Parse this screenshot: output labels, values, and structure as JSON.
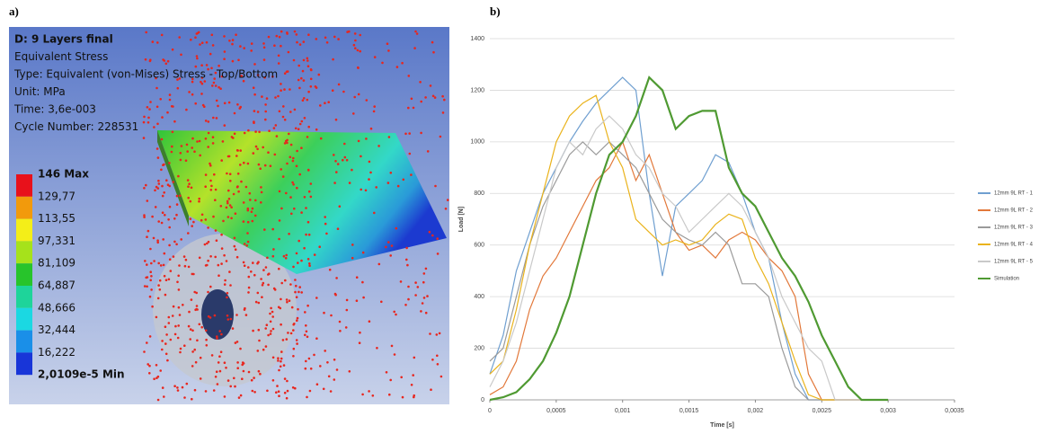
{
  "panel_a": {
    "label": "a)",
    "info": [
      "D: 9 Layers final",
      "Equivalent Stress",
      "Type: Equivalent (von-Mises) Stress - Top/Bottom",
      "Unit: MPa",
      "Time: 3,6e-003",
      "Cycle Number: 228531"
    ],
    "legend": [
      {
        "label": "146 Max",
        "color": "#e8111b"
      },
      {
        "label": "129,77",
        "color": "#f29a0c"
      },
      {
        "label": "113,55",
        "color": "#f4ee18"
      },
      {
        "label": "97,331",
        "color": "#a6e21b"
      },
      {
        "label": "81,109",
        "color": "#27c42b"
      },
      {
        "label": "64,887",
        "color": "#1ed49a"
      },
      {
        "label": "48,666",
        "color": "#1bd8e2"
      },
      {
        "label": "32,444",
        "color": "#1a8fe8"
      },
      {
        "label": "16,222",
        "color": "#1835d8"
      },
      {
        "label": "2,0109e-5 Min",
        "color": "#0f1ea8"
      }
    ]
  },
  "chart_data": {
    "type": "line",
    "label": "b)",
    "x_label": "Time [s]",
    "y_label": "Load [N]",
    "x": [
      0,
      0.0001,
      0.0002,
      0.0003,
      0.0004,
      0.0005,
      0.0006,
      0.0007,
      0.0008,
      0.0009,
      0.001,
      0.0011,
      0.0012,
      0.0013,
      0.0014,
      0.0015,
      0.0016,
      0.0017,
      0.0018,
      0.0019,
      0.002,
      0.0021,
      0.0022,
      0.0023,
      0.0024,
      0.0025,
      0.0026,
      0.0027,
      0.0028,
      0.0029,
      0.003
    ],
    "xlim": [
      0,
      0.0035
    ],
    "ylim": [
      0,
      1400
    ],
    "xticks": [
      0,
      {
        "value": 0.0005,
        "label": "0,0005"
      },
      {
        "value": 0.001,
        "label": "0,001"
      },
      {
        "value": 0.0015,
        "label": "0,0015"
      },
      {
        "value": 0.002,
        "label": "0,002"
      },
      {
        "value": 0.0025,
        "label": "0,0025"
      },
      {
        "value": 0.003,
        "label": "0,003"
      },
      {
        "value": 0.0035,
        "label": "0,0035"
      }
    ],
    "yticks": [
      0,
      200,
      400,
      600,
      800,
      1000,
      1200,
      1400
    ],
    "grid": true,
    "series": [
      {
        "name": "12mm 9L RT - 1",
        "color": "#6f9fd0",
        "values": [
          100,
          250,
          500,
          650,
          800,
          900,
          1000,
          1080,
          1150,
          1200,
          1250,
          1200,
          800,
          480,
          750,
          800,
          850,
          950,
          920,
          800,
          650,
          550,
          300,
          100,
          0,
          0,
          0,
          0,
          0,
          0,
          0
        ]
      },
      {
        "name": "12mm 9L RT - 2",
        "color": "#e2783a",
        "values": [
          20,
          50,
          150,
          350,
          480,
          550,
          650,
          750,
          850,
          900,
          1000,
          850,
          950,
          800,
          650,
          580,
          600,
          550,
          620,
          650,
          620,
          550,
          500,
          400,
          100,
          0,
          0,
          0,
          0,
          0,
          0
        ]
      },
      {
        "name": "12mm 9L RT - 3",
        "color": "#9a9a9a",
        "values": [
          150,
          200,
          400,
          600,
          750,
          850,
          950,
          1000,
          950,
          1000,
          950,
          900,
          800,
          700,
          650,
          620,
          600,
          650,
          600,
          450,
          450,
          400,
          200,
          50,
          0,
          0,
          0,
          0,
          0,
          0,
          0
        ]
      },
      {
        "name": "12mm 9L RT - 4",
        "color": "#eab31c",
        "values": [
          100,
          150,
          350,
          600,
          800,
          1000,
          1100,
          1150,
          1180,
          1000,
          900,
          700,
          650,
          600,
          620,
          600,
          620,
          680,
          720,
          700,
          550,
          450,
          300,
          150,
          20,
          0,
          0,
          0,
          0,
          0,
          0
        ]
      },
      {
        "name": "12mm 9L RT - 5",
        "color": "#c9c9c9",
        "values": [
          50,
          150,
          300,
          500,
          700,
          900,
          1000,
          950,
          1050,
          1100,
          1050,
          950,
          900,
          800,
          750,
          650,
          700,
          750,
          800,
          750,
          650,
          550,
          400,
          300,
          200,
          150,
          0,
          0,
          0,
          0,
          0
        ]
      },
      {
        "name": "Simulation",
        "color": "#4f9a32",
        "values": [
          0,
          10,
          30,
          80,
          150,
          260,
          400,
          600,
          800,
          950,
          1000,
          1100,
          1250,
          1200,
          1050,
          1100,
          1120,
          1120,
          900,
          800,
          750,
          650,
          550,
          480,
          380,
          250,
          150,
          50,
          0,
          0,
          0
        ]
      }
    ]
  }
}
